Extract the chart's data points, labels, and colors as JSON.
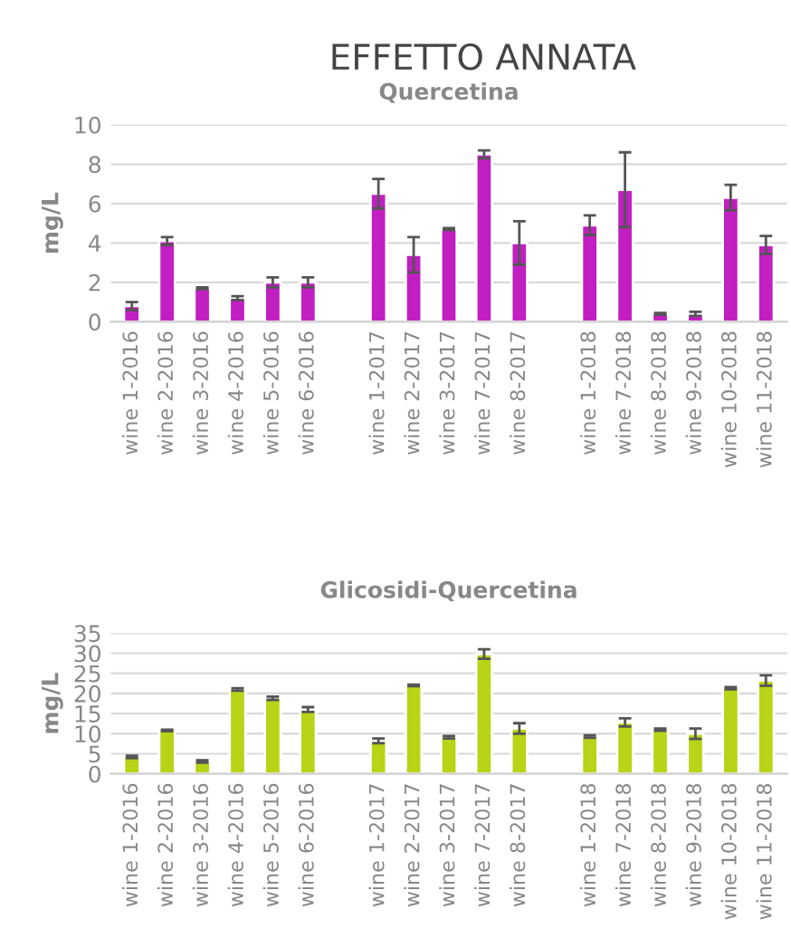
{
  "chart_data": [
    {
      "type": "bar",
      "title": "EFFETTO ANNATA",
      "subtitle": "Quercetina",
      "ylabel": "mg/L",
      "categories": [
        "wine 1-2016",
        "wine 2-2016",
        "wine 3-2016",
        "wine 4-2016",
        "wine 5-2016",
        "wine 6-2016",
        null,
        "wine 1-2017",
        "wine 2-2017",
        "wine 3-2017",
        "wine 7-2017",
        "wine 8-2017",
        null,
        "wine 1-2018",
        "wine 7-2018",
        "wine 8-2018",
        "wine 9-2018",
        "wine 10-2018",
        "wine 11-2018"
      ],
      "series": [
        {
          "color": "#c11fc1",
          "values": [
            0.8,
            4.1,
            1.7,
            1.2,
            2.0,
            2.0,
            null,
            6.5,
            3.4,
            4.7,
            8.5,
            4.0,
            null,
            4.9,
            6.7,
            0.4,
            0.4,
            6.3,
            3.9
          ],
          "errors": [
            0.2,
            0.2,
            0.05,
            0.1,
            0.25,
            0.25,
            null,
            0.75,
            0.9,
            0.05,
            0.2,
            1.1,
            null,
            0.5,
            1.9,
            0.05,
            0.1,
            0.65,
            0.45
          ]
        }
      ],
      "ylim": [
        0,
        10
      ],
      "yticks": [
        0,
        2,
        4,
        6,
        8,
        10
      ],
      "grid": "y",
      "legend": false
    },
    {
      "type": "bar",
      "title": "Glicosidi-Quercetina",
      "ylabel": "mg/L",
      "categories": [
        "wine 1-2016",
        "wine 2-2016",
        "wine 3-2016",
        "wine 4-2016",
        "wine 5-2016",
        "wine 6-2016",
        null,
        "wine 1-2017",
        "wine 2-2017",
        "wine 3-2017",
        "wine 7-2017",
        "wine 8-2017",
        null,
        "wine 1-2018",
        "wine 7-2018",
        "wine 8-2018",
        "wine 9-2018",
        "wine 10-2018",
        "wine 11-2018"
      ],
      "series": [
        {
          "color": "#b9d317",
          "values": [
            4.2,
            10.8,
            3.1,
            21,
            18.8,
            16,
            null,
            8.2,
            22,
            9.1,
            29.8,
            11.3,
            null,
            9.3,
            12.8,
            11,
            10,
            21.3,
            23.2
          ],
          "errors": [
            0.3,
            0.2,
            0.3,
            0.3,
            0.4,
            0.6,
            null,
            0.6,
            0.2,
            0.3,
            1.2,
            1.3,
            null,
            0.3,
            1.0,
            0.3,
            1.3,
            0.3,
            1.3
          ]
        }
      ],
      "ylim": [
        0,
        35
      ],
      "yticks": [
        0,
        5,
        10,
        15,
        20,
        25,
        30,
        35
      ],
      "grid": "y",
      "legend": false
    }
  ]
}
